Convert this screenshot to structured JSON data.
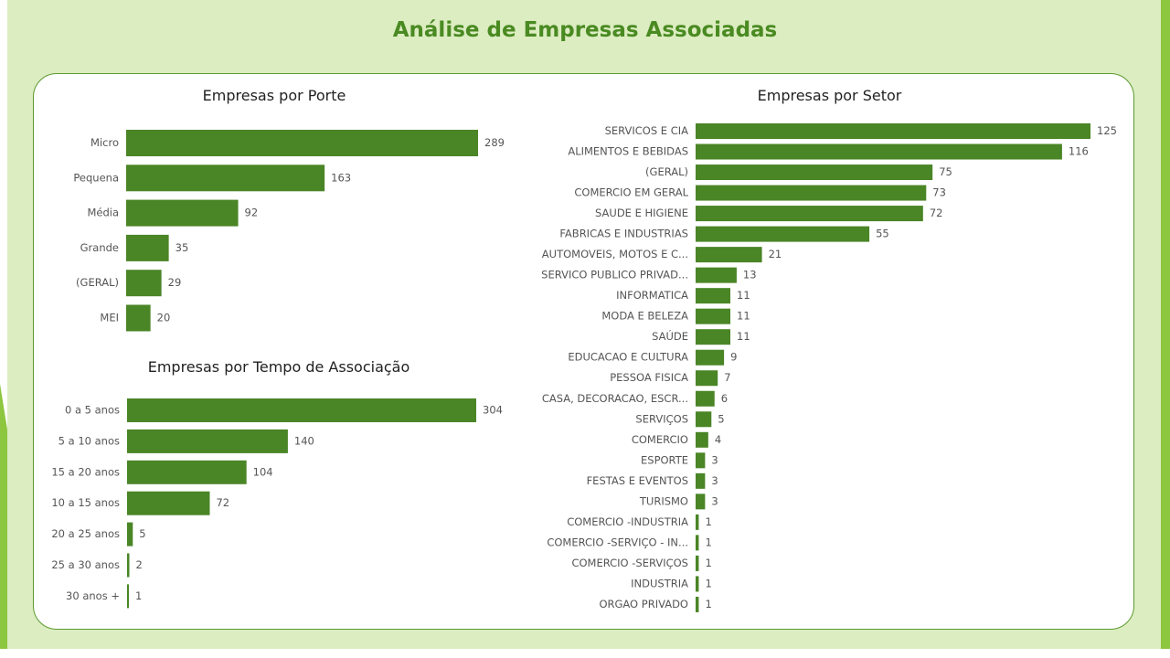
{
  "page_title": "Análise de Empresas Associadas",
  "colors": {
    "bar": "#4a8526",
    "title": "#4a8a22",
    "background": "#dcedc1",
    "accent": "#8dc63f"
  },
  "chart_data": [
    {
      "type": "bar",
      "orientation": "horizontal",
      "title": "Empresas por Porte",
      "categories": [
        "Micro",
        "Pequena",
        "Média",
        "Grande",
        "(GERAL)",
        "MEI"
      ],
      "values": [
        289,
        163,
        92,
        35,
        29,
        20
      ],
      "data_labels": true
    },
    {
      "type": "bar",
      "orientation": "horizontal",
      "title": "Empresas por Tempo de Associação",
      "categories": [
        "0 a 5 anos",
        "5 a 10 anos",
        "15 a 20 anos",
        "10 a 15 anos",
        "20 a 25 anos",
        "25 a 30 anos",
        "30 anos +"
      ],
      "values": [
        304,
        140,
        104,
        72,
        5,
        2,
        1
      ],
      "data_labels": true
    },
    {
      "type": "bar",
      "orientation": "horizontal",
      "title": "Empresas por Setor",
      "categories": [
        "SERVICOS E CIA",
        "ALIMENTOS E BEBIDAS",
        "(GERAL)",
        "COMERCIO EM GERAL",
        "SAUDE E HIGIENE",
        "FABRICAS E INDUSTRIAS",
        "AUTOMOVEIS, MOTOS E C...",
        "SERVICO PUBLICO PRIVAD...",
        "INFORMATICA",
        "MODA E BELEZA",
        "SAÚDE",
        "EDUCACAO E CULTURA",
        "PESSOA FISICA",
        "CASA, DECORACAO, ESCR...",
        "SERVIÇOS",
        "COMERCIO",
        "ESPORTE",
        "FESTAS E EVENTOS",
        "TURISMO",
        "COMERCIO -INDUSTRIA",
        "COMERCIO -SERVIÇO - IN...",
        "COMERCIO -SERVIÇOS",
        "INDUSTRIA",
        "ORGAO PRIVADO"
      ],
      "values": [
        125,
        116,
        75,
        73,
        72,
        55,
        21,
        13,
        11,
        11,
        11,
        9,
        7,
        6,
        5,
        4,
        3,
        3,
        3,
        1,
        1,
        1,
        1,
        1
      ],
      "data_labels": true
    }
  ]
}
